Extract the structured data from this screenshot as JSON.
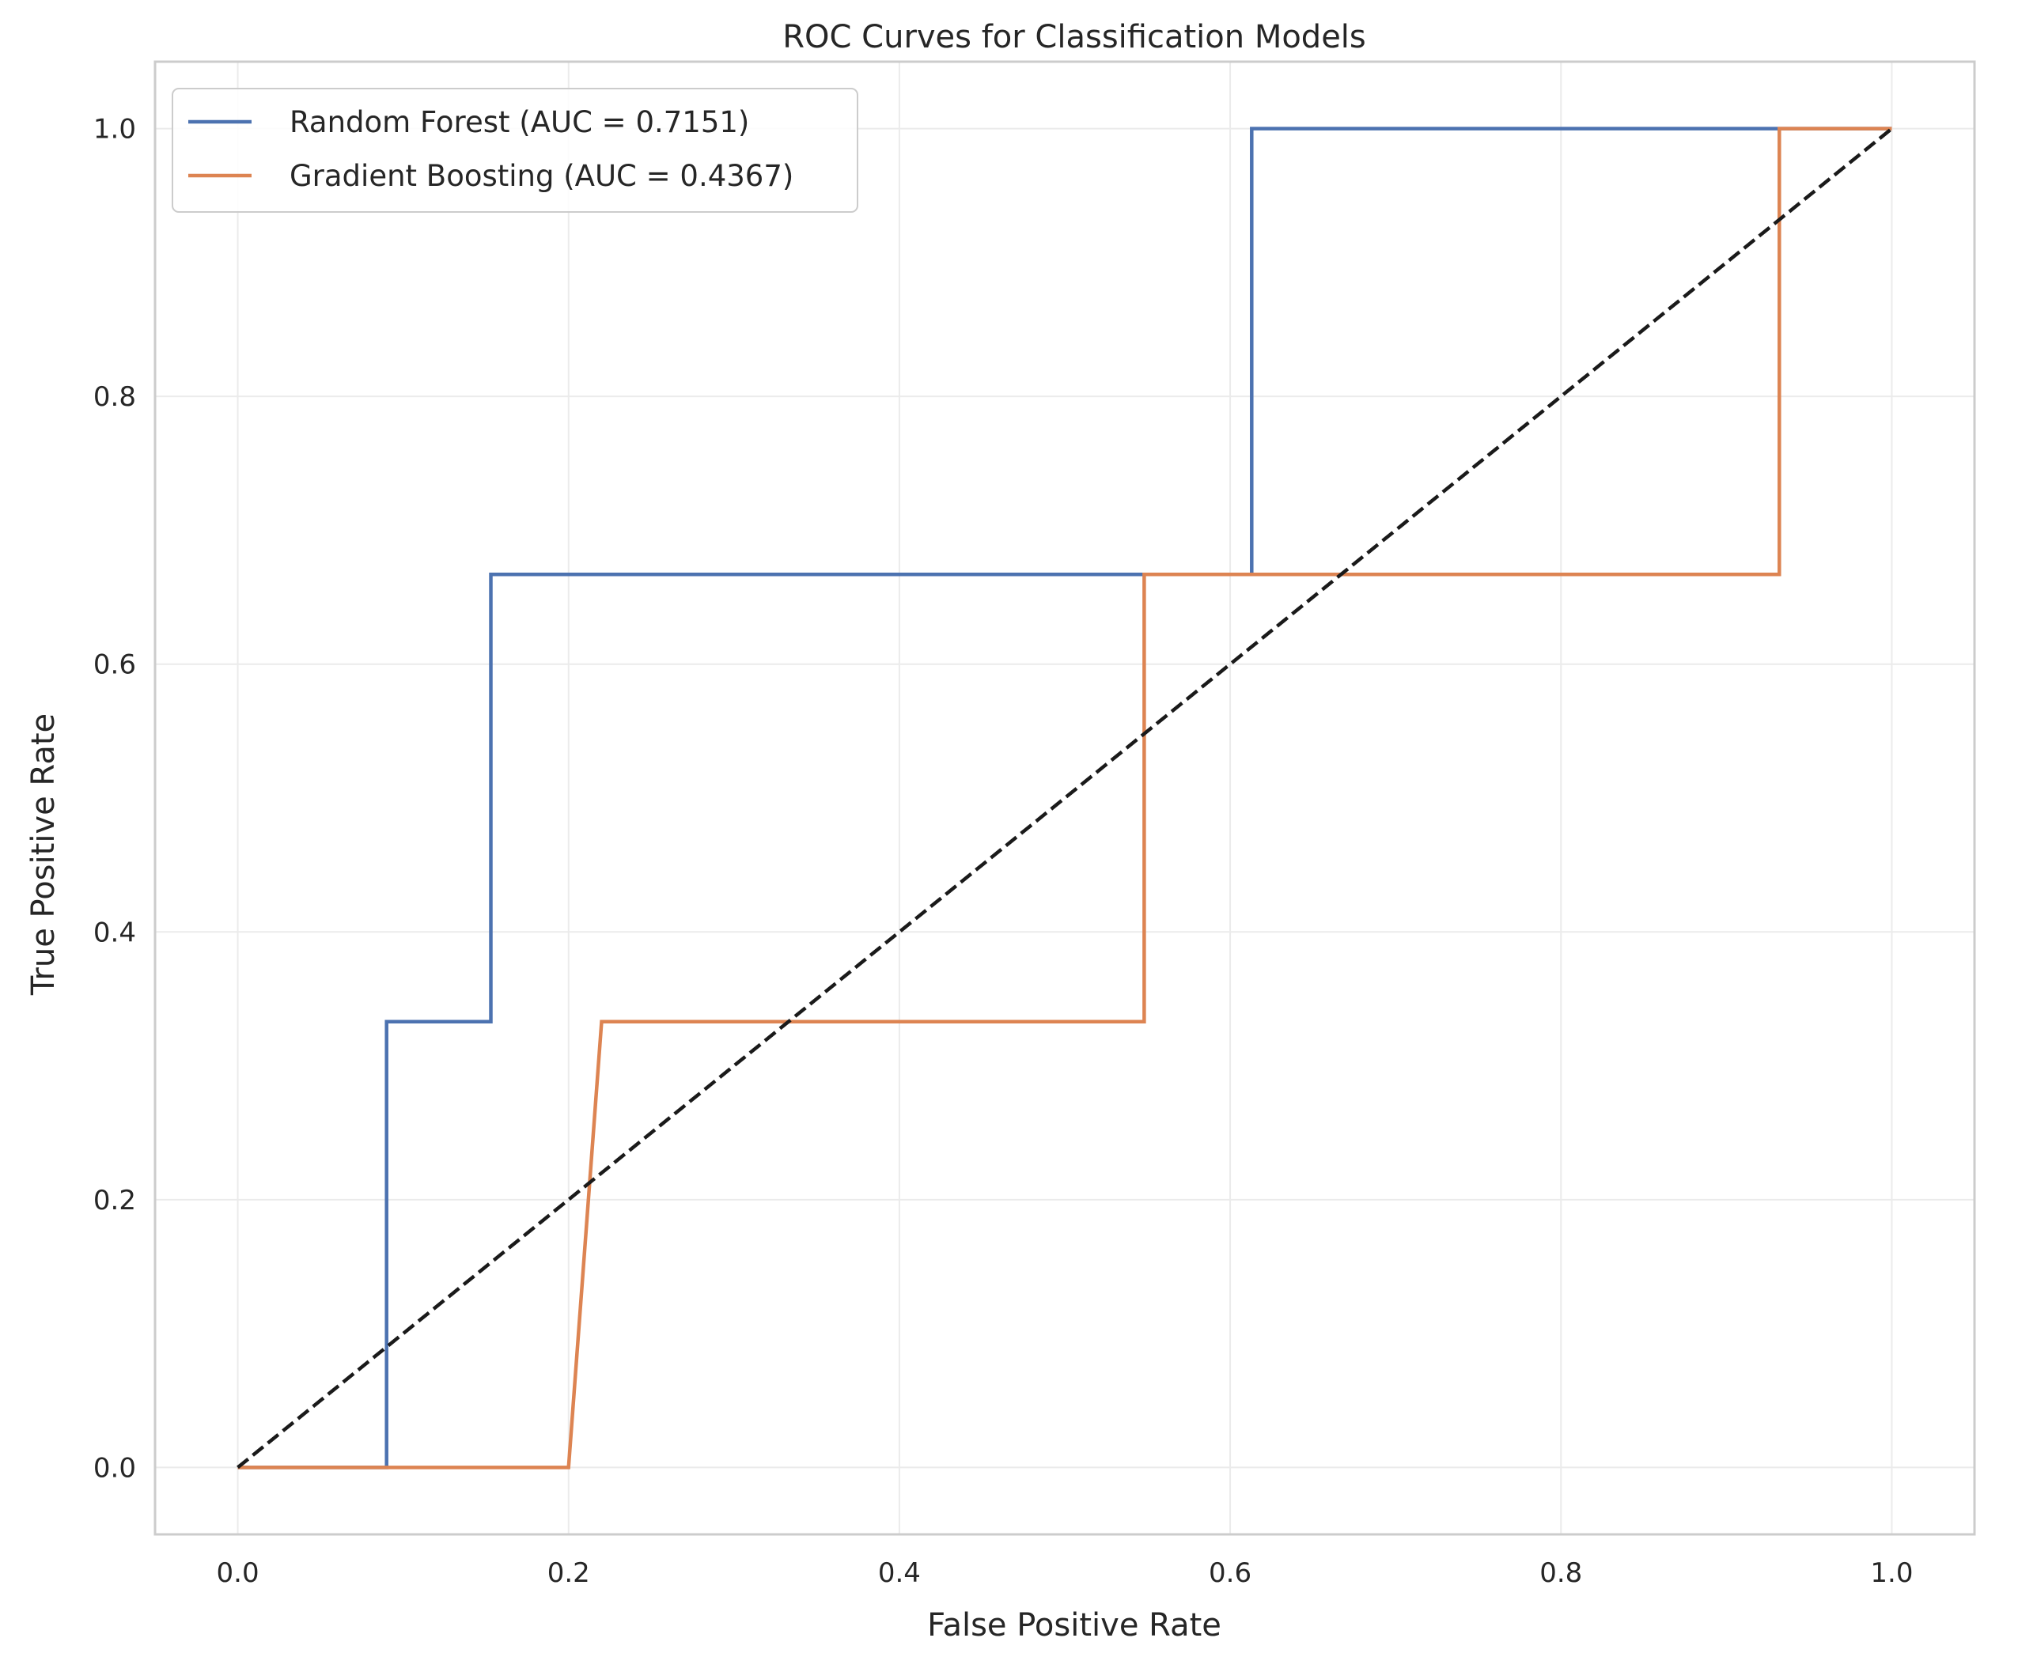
{
  "chart_data": {
    "type": "line",
    "title": "ROC Curves for Classification Models",
    "xlabel": "False Positive Rate",
    "ylabel": "True Positive Rate",
    "xlim": [
      -0.05,
      1.05
    ],
    "ylim": [
      -0.05,
      1.05
    ],
    "xticks": [
      0.0,
      0.2,
      0.4,
      0.6,
      0.8,
      1.0
    ],
    "yticks": [
      0.0,
      0.2,
      0.4,
      0.6,
      0.8,
      1.0
    ],
    "xtick_labels": [
      "0.0",
      "0.2",
      "0.4",
      "0.6",
      "0.8",
      "1.0"
    ],
    "ytick_labels": [
      "0.0",
      "0.2",
      "0.4",
      "0.6",
      "0.8",
      "1.0"
    ],
    "grid": true,
    "legend_position": "top-left",
    "series": [
      {
        "name": "Random Forest (AUC = 0.7151)",
        "color": "#4c72b0",
        "x": [
          0.0,
          0.09,
          0.09,
          0.153,
          0.153,
          0.613,
          0.613,
          1.0
        ],
        "y": [
          0.0,
          0.0,
          0.333,
          0.333,
          0.667,
          0.667,
          1.0,
          1.0
        ]
      },
      {
        "name": "Gradient Boosting (AUC = 0.4367)",
        "color": "#dd8452",
        "x": [
          0.0,
          0.2,
          0.22,
          0.548,
          0.548,
          0.932,
          0.932,
          1.0
        ],
        "y": [
          0.0,
          0.0,
          0.333,
          0.333,
          0.667,
          0.667,
          1.0,
          1.0
        ]
      },
      {
        "color": "#1a1a1a",
        "style": "dashed",
        "x": [
          0.0,
          1.0
        ],
        "y": [
          0.0,
          1.0
        ]
      }
    ]
  }
}
